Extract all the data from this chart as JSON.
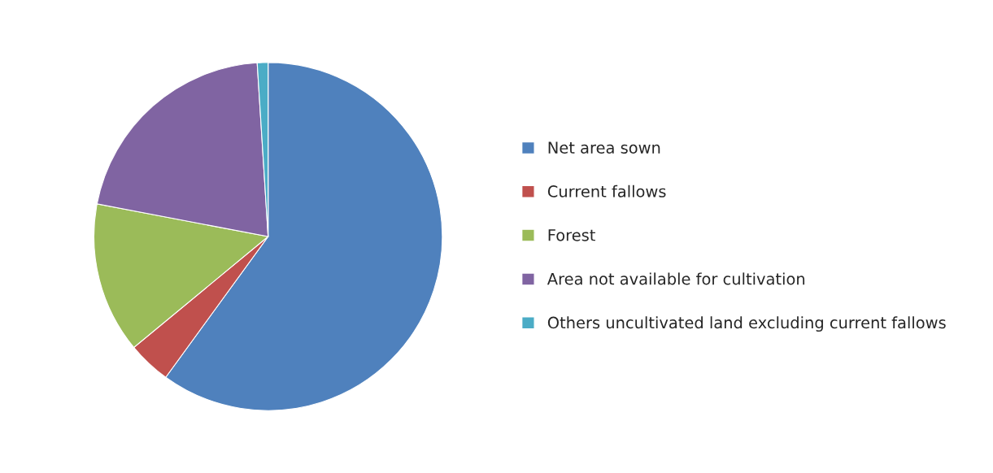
{
  "chart_data": {
    "type": "pie",
    "categories": [
      "Net area sown",
      "Current fallows",
      "Forest",
      "Area not available for cultivation",
      "Others uncultivated land excluding current fallows"
    ],
    "values": [
      60,
      4,
      14,
      21,
      1
    ],
    "colors": [
      "#4f81bd",
      "#c0504d",
      "#9bbb59",
      "#8064a2",
      "#4bacc6"
    ],
    "legend": "right"
  }
}
